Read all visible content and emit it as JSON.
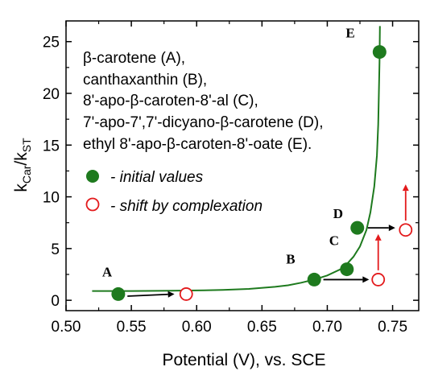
{
  "chart_data": {
    "type": "scatter",
    "xlabel": "Potential (V), vs. SCE",
    "ylabel": {
      "main": "k",
      "sub1": "Car",
      "sep": "/k",
      "sub2": "ST"
    },
    "xlim": [
      0.5,
      0.77
    ],
    "ylim": [
      -1,
      27
    ],
    "xticks": [
      "0.50",
      "0.55",
      "0.60",
      "0.65",
      "0.70",
      "0.75"
    ],
    "yticks": [
      "0",
      "5",
      "10",
      "15",
      "20",
      "25"
    ],
    "grid": false,
    "compounds": [
      "β-carotene (A),",
      "canthaxanthin (B),",
      "8'-apo-β-caroten-8'-al (C),",
      "7'-apo-7',7'-dicyano-β-carotene (D),",
      "ethyl 8'-apo-β-caroten-8'-oate (E)."
    ],
    "legend": [
      {
        "marker": "filled-circle",
        "label": "- initial values"
      },
      {
        "marker": "open-circle",
        "label": "- shift by complexation"
      }
    ],
    "series": [
      {
        "name": "initial values",
        "marker": "filled-circle",
        "color": "#1e7a1e",
        "points": [
          {
            "label": "A",
            "x": 0.54,
            "y": 0.6
          },
          {
            "label": "B",
            "x": 0.69,
            "y": 2.0
          },
          {
            "label": "C",
            "x": 0.715,
            "y": 3.0
          },
          {
            "label": "D",
            "x": 0.723,
            "y": 7.0
          },
          {
            "label": "E",
            "x": 0.74,
            "y": 24.0
          }
        ]
      },
      {
        "name": "shift by complexation",
        "marker": "open-circle",
        "color": "#e31a1c",
        "points": [
          {
            "label": "A",
            "x": 0.592,
            "y": 0.6
          },
          {
            "label": "B",
            "x": 0.739,
            "y": 2.0
          },
          {
            "label": "D",
            "x": 0.76,
            "y": 6.8
          }
        ]
      }
    ],
    "fit_curve": {
      "color": "#1e7a1e",
      "points": [
        [
          0.52,
          0.9
        ],
        [
          0.55,
          0.9
        ],
        [
          0.58,
          0.92
        ],
        [
          0.6,
          0.95
        ],
        [
          0.62,
          1.0
        ],
        [
          0.64,
          1.1
        ],
        [
          0.66,
          1.3
        ],
        [
          0.67,
          1.45
        ],
        [
          0.68,
          1.7
        ],
        [
          0.69,
          2.0
        ],
        [
          0.7,
          2.4
        ],
        [
          0.71,
          3.0
        ],
        [
          0.715,
          3.5
        ],
        [
          0.72,
          4.2
        ],
        [
          0.725,
          5.2
        ],
        [
          0.73,
          6.8
        ],
        [
          0.733,
          8.5
        ],
        [
          0.736,
          11.0
        ],
        [
          0.738,
          14.0
        ],
        [
          0.739,
          17.0
        ],
        [
          0.7395,
          20.0
        ],
        [
          0.74,
          23.0
        ],
        [
          0.7403,
          26.5
        ]
      ]
    },
    "shift_arrows": [
      {
        "color": "#000000",
        "from": [
          0.547,
          0.4
        ],
        "to": [
          0.583,
          0.6
        ]
      },
      {
        "color": "#000000",
        "from": [
          0.697,
          2.0
        ],
        "to": [
          0.732,
          2.0
        ]
      },
      {
        "color": "#000000",
        "from": [
          0.731,
          7.0
        ],
        "to": [
          0.752,
          7.0
        ]
      }
    ],
    "complexation_arrows": [
      {
        "color": "#e31a1c",
        "from": [
          0.739,
          2.9
        ],
        "to": [
          0.739,
          6.4
        ]
      },
      {
        "color": "#e31a1c",
        "from": [
          0.76,
          7.7
        ],
        "to": [
          0.76,
          11.2
        ]
      }
    ]
  }
}
